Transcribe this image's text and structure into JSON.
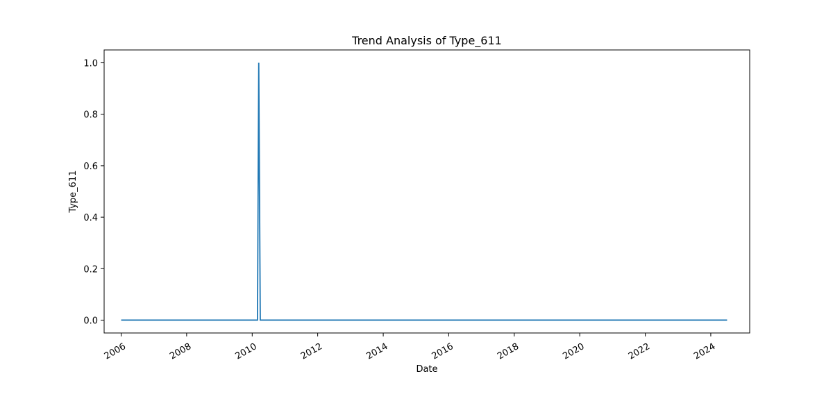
{
  "chart_data": {
    "type": "line",
    "title": "Trend Analysis of Type_611",
    "xlabel": "Date",
    "ylabel": "Type_611",
    "x_ticks": [
      "2006",
      "2008",
      "2010",
      "2012",
      "2014",
      "2016",
      "2018",
      "2020",
      "2022",
      "2024"
    ],
    "y_ticks": [
      "0.0",
      "0.2",
      "0.4",
      "0.6",
      "0.8",
      "1.0"
    ],
    "xlim": [
      "2005-06-25",
      "2025-03-10"
    ],
    "ylim": [
      -0.05,
      1.05
    ],
    "grid": false,
    "legend": "none",
    "series": [
      {
        "color": "#1f77b4",
        "points": [
          {
            "x": "2006-01-01",
            "y": 0
          },
          {
            "x": "2010-03-01",
            "y": 0
          },
          {
            "x": "2010-03-15",
            "y": 1
          },
          {
            "x": "2010-04-01",
            "y": 0
          },
          {
            "x": "2024-07-01",
            "y": 0
          }
        ]
      }
    ]
  }
}
